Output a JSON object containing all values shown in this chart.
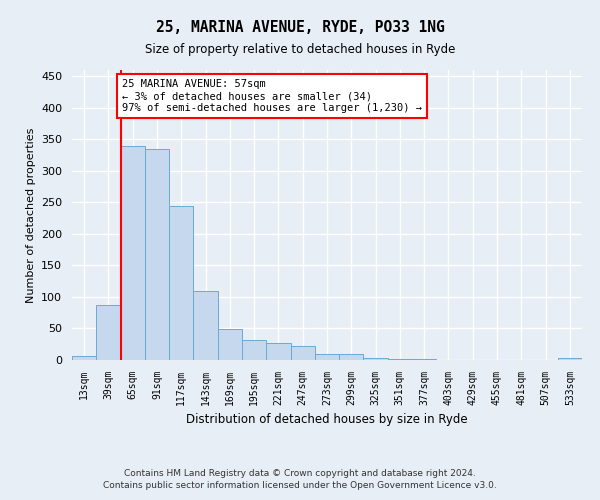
{
  "title_line1": "25, MARINA AVENUE, RYDE, PO33 1NG",
  "title_line2": "Size of property relative to detached houses in Ryde",
  "xlabel": "Distribution of detached houses by size in Ryde",
  "ylabel": "Number of detached properties",
  "categories": [
    "13sqm",
    "39sqm",
    "65sqm",
    "91sqm",
    "117sqm",
    "143sqm",
    "169sqm",
    "195sqm",
    "221sqm",
    "247sqm",
    "273sqm",
    "299sqm",
    "325sqm",
    "351sqm",
    "377sqm",
    "403sqm",
    "429sqm",
    "455sqm",
    "481sqm",
    "507sqm",
    "533sqm"
  ],
  "values": [
    6,
    88,
    340,
    334,
    245,
    109,
    49,
    32,
    27,
    22,
    10,
    9,
    3,
    1,
    1,
    0,
    0,
    0,
    0,
    0,
    3
  ],
  "bar_color": "#c5d8ee",
  "bar_edge_color": "#6aaad4",
  "annotation_text": "25 MARINA AVENUE: 57sqm\n← 3% of detached houses are smaller (34)\n97% of semi-detached houses are larger (1,230) →",
  "annotation_box_color": "white",
  "annotation_box_edge_color": "red",
  "vline_color": "red",
  "ylim": [
    0,
    460
  ],
  "yticks": [
    0,
    50,
    100,
    150,
    200,
    250,
    300,
    350,
    400,
    450
  ],
  "footer_line1": "Contains HM Land Registry data © Crown copyright and database right 2024.",
  "footer_line2": "Contains public sector information licensed under the Open Government Licence v3.0.",
  "bg_color": "#e8eef5",
  "plot_bg_color": "#e8eef5",
  "grid_color": "white",
  "vline_x_index": 1.5
}
